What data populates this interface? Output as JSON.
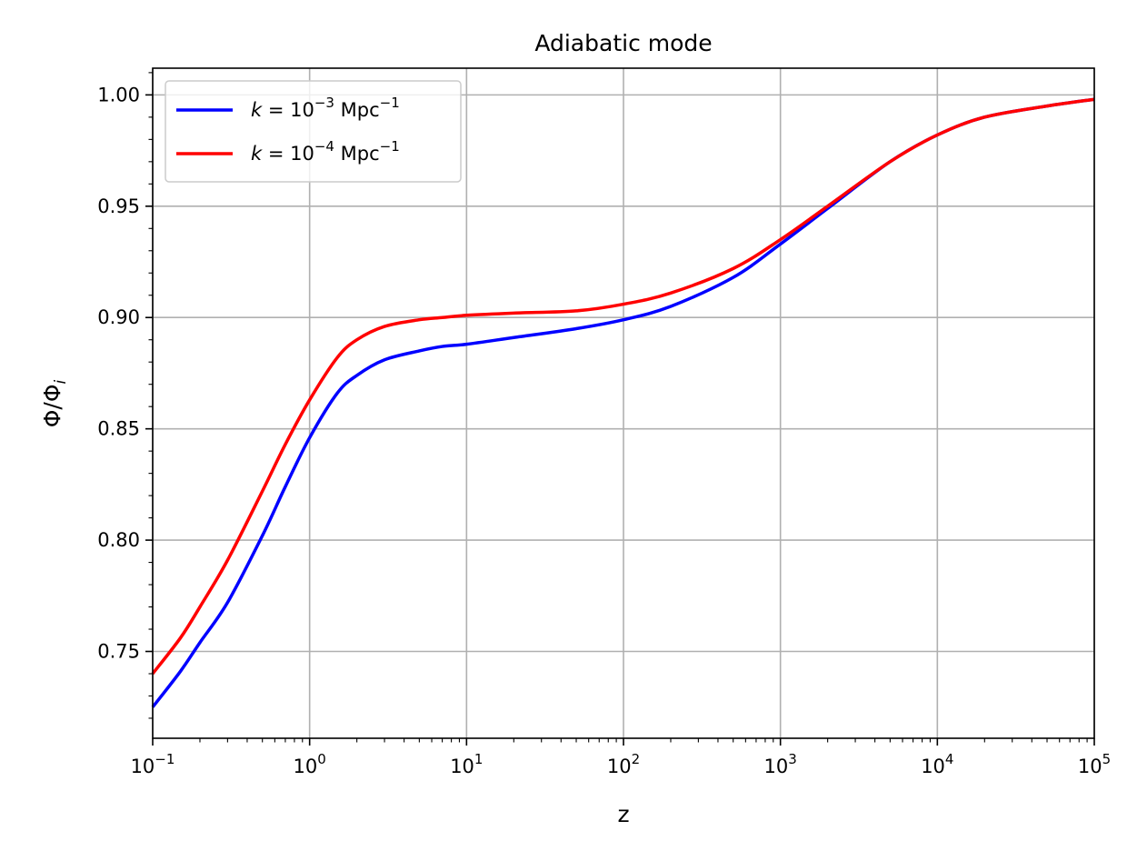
{
  "chart_data": {
    "type": "line",
    "title": "Adiabatic mode",
    "xlabel": "z",
    "ylabel": "Φ/Φi",
    "ylabel_main": "Φ/Φ",
    "ylabel_sub": "i",
    "xscale": "log",
    "xlim": [
      0.1,
      100000
    ],
    "ylim": [
      0.711,
      1.012
    ],
    "grid": true,
    "legend_position": "top-left",
    "x_ticks": [
      {
        "value": 0.1,
        "base": "10",
        "exp": "−1"
      },
      {
        "value": 1,
        "base": "10",
        "exp": "0"
      },
      {
        "value": 10,
        "base": "10",
        "exp": "1"
      },
      {
        "value": 100,
        "base": "10",
        "exp": "2"
      },
      {
        "value": 1000,
        "base": "10",
        "exp": "3"
      },
      {
        "value": 10000,
        "base": "10",
        "exp": "4"
      },
      {
        "value": 100000,
        "base": "10",
        "exp": "5"
      }
    ],
    "y_ticks": [
      {
        "value": 0.75,
        "label": "0.75"
      },
      {
        "value": 0.8,
        "label": "0.80"
      },
      {
        "value": 0.85,
        "label": "0.85"
      },
      {
        "value": 0.9,
        "label": "0.90"
      },
      {
        "value": 0.95,
        "label": "0.95"
      },
      {
        "value": 1.0,
        "label": "1.00"
      }
    ],
    "series": [
      {
        "name": "k = 10−3 Mpc−1",
        "legend": {
          "prefix": "k",
          "eq": " = 10",
          "exp1": "−3",
          "unit": " Mpc",
          "exp2": "−1"
        },
        "color": "#0000ff",
        "x": [
          0.1,
          0.15,
          0.2,
          0.3,
          0.5,
          0.7,
          1,
          1.5,
          2,
          3,
          5,
          7,
          10,
          20,
          50,
          100,
          200,
          500,
          1000,
          2000,
          5000,
          10000,
          20000,
          50000,
          100000
        ],
        "y": [
          0.725,
          0.741,
          0.754,
          0.772,
          0.802,
          0.824,
          0.846,
          0.866,
          0.874,
          0.881,
          0.885,
          0.887,
          0.888,
          0.891,
          0.895,
          0.899,
          0.905,
          0.918,
          0.933,
          0.949,
          0.97,
          0.982,
          0.99,
          0.995,
          0.998
        ]
      },
      {
        "name": "k = 10−4 Mpc−1",
        "legend": {
          "prefix": "k",
          "eq": " = 10",
          "exp1": "−4",
          "unit": " Mpc",
          "exp2": "−1"
        },
        "color": "#ff0000",
        "x": [
          0.1,
          0.15,
          0.2,
          0.3,
          0.5,
          0.7,
          1,
          1.5,
          2,
          3,
          5,
          7,
          10,
          20,
          50,
          100,
          200,
          500,
          1000,
          2000,
          5000,
          10000,
          20000,
          50000,
          100000
        ],
        "y": [
          0.74,
          0.756,
          0.77,
          0.791,
          0.822,
          0.843,
          0.863,
          0.882,
          0.89,
          0.896,
          0.899,
          0.9,
          0.901,
          0.902,
          0.903,
          0.906,
          0.911,
          0.922,
          0.935,
          0.95,
          0.97,
          0.982,
          0.99,
          0.995,
          0.998
        ]
      }
    ]
  }
}
